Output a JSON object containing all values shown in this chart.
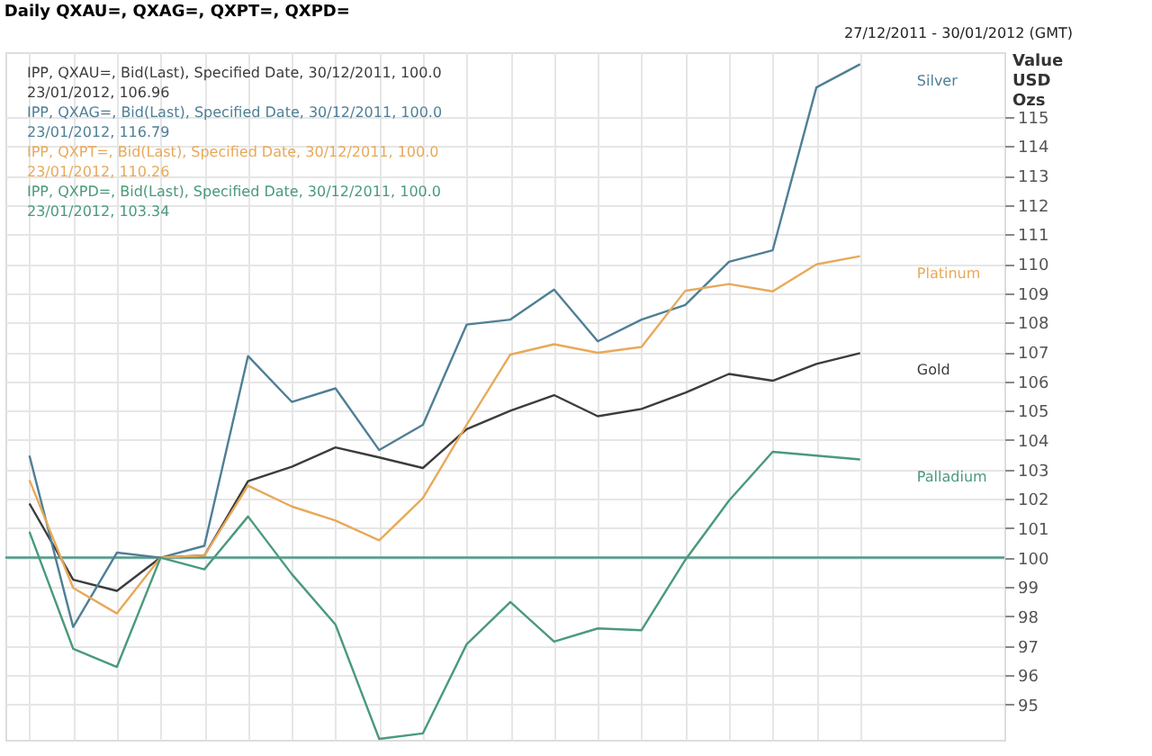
{
  "chart_data": {
    "type": "line",
    "title": "Daily QXAU=, QXAG=, QXPT=, QXPD=",
    "subtitle": "27/12/2011 - 30/01/2012 (GMT)",
    "ylabel": "Value USD Ozs",
    "categories": [
      null,
      null,
      null,
      null,
      null,
      null,
      null,
      null,
      null,
      null,
      null,
      null,
      null,
      null,
      null,
      null,
      null,
      null,
      null,
      null
    ],
    "series": [
      {
        "name": "Gold",
        "color": "#3c3c3c",
        "values": [
          101.84,
          99.25,
          98.87,
          100,
          100.07,
          102.6,
          103.09,
          103.75,
          103.41,
          103.05,
          104.37,
          105.0,
          105.53,
          104.81,
          105.06,
          105.61,
          106.25,
          106.02,
          106.59,
          106.96
        ]
      },
      {
        "name": "Silver",
        "color": "#4f7f96",
        "values": [
          103.47,
          97.64,
          100.17,
          100,
          100.4,
          106.86,
          105.3,
          105.76,
          103.66,
          104.52,
          107.93,
          108.1,
          109.12,
          107.36,
          108.1,
          108.6,
          110.07,
          110.46,
          116.0,
          116.79
        ]
      },
      {
        "name": "Platinum",
        "color": "#e8a95a",
        "values": [
          102.64,
          98.97,
          98.1,
          100,
          100.07,
          102.45,
          101.74,
          101.26,
          100.59,
          102.03,
          104.52,
          106.91,
          107.26,
          106.97,
          107.17,
          109.08,
          109.31,
          109.06,
          109.98,
          110.26
        ]
      },
      {
        "name": "Palladium",
        "color": "#4a9a7a",
        "values": [
          100.88,
          96.9,
          96.28,
          100,
          99.6,
          101.4,
          99.44,
          97.72,
          93.83,
          94.02,
          97.05,
          98.49,
          97.14,
          97.59,
          97.53,
          99.92,
          101.94,
          103.6,
          103.47,
          103.34
        ]
      }
    ],
    "ylim": [
      93.8,
      117.2
    ],
    "yticks": [
      95,
      96,
      97,
      98,
      99,
      100,
      101,
      102,
      103,
      104,
      105,
      106,
      107,
      108,
      109,
      110,
      111,
      112,
      113,
      114,
      115
    ],
    "ref_lines": [
      {
        "axis": "y",
        "value": 100,
        "color": "#4e9a8a"
      }
    ],
    "annotations": [
      "IPP, QXAU=, Bid(Last), Specified Date, 30/12/2011, 100.0",
      "23/01/2012, 106.96",
      "IPP, QXAG=, Bid(Last), Specified Date, 30/12/2011, 100.0",
      "23/01/2012, 116.79",
      "IPP, QXPT=, Bid(Last), Specified Date, 30/12/2011, 100.0",
      "23/01/2012, 110.26",
      "IPP, QXPD=, Bid(Last), Specified Date, 30/12/2011, 100.0",
      "23/01/2012, 103.34"
    ],
    "grid": true,
    "legend": false,
    "tick_labels": "y",
    "marker": "none",
    "line_style": "solid"
  }
}
